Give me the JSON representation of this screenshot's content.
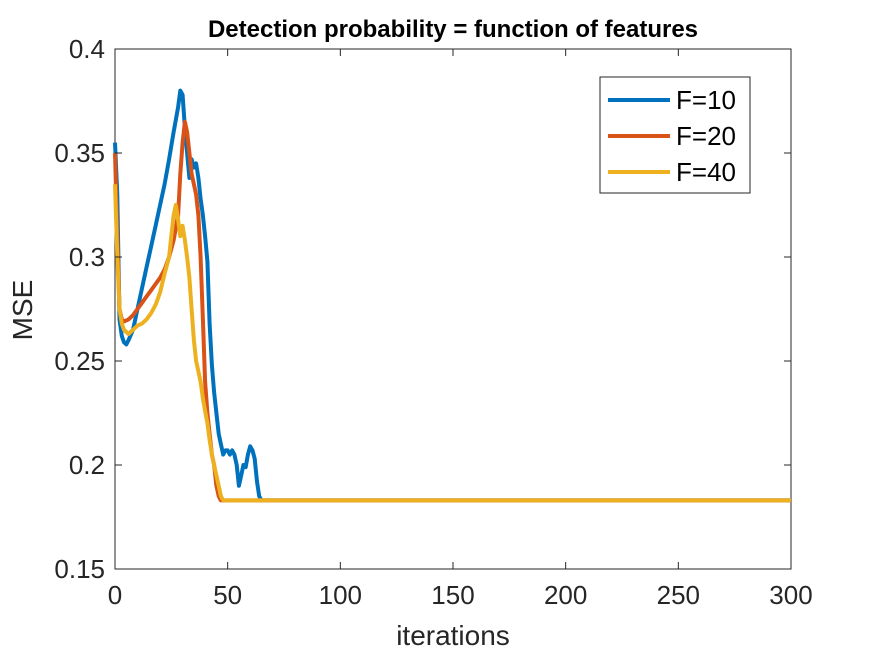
{
  "chart_data": {
    "type": "line",
    "title": "Detection probability = function of features",
    "xlabel": "iterations",
    "ylabel": "MSE",
    "xlim": [
      0,
      300
    ],
    "ylim": [
      0.15,
      0.4
    ],
    "xticks": [
      0,
      50,
      100,
      150,
      200,
      250,
      300
    ],
    "yticks": [
      0.15,
      0.2,
      0.25,
      0.3,
      0.35,
      0.4
    ],
    "xtick_labels": [
      "0",
      "50",
      "100",
      "150",
      "200",
      "250",
      "300"
    ],
    "ytick_labels": [
      "0.15",
      "0.2",
      "0.25",
      "0.3",
      "0.35",
      "0.4"
    ],
    "grid": false,
    "legend_position": "top-right",
    "series": [
      {
        "name": "F=10",
        "color": "#0072BD",
        "x": [
          0,
          1,
          2,
          3,
          4,
          5,
          6,
          8,
          10,
          12,
          14,
          16,
          18,
          20,
          22,
          24,
          26,
          28,
          29,
          30,
          31,
          32,
          33,
          34,
          35,
          36,
          37,
          38,
          39,
          40,
          41,
          42,
          43,
          44,
          45,
          46,
          47,
          48,
          49,
          50,
          51,
          52,
          53,
          54,
          55,
          56,
          57,
          58,
          59,
          60,
          61,
          62,
          63,
          64,
          65,
          300
        ],
        "y": [
          0.355,
          0.33,
          0.27,
          0.262,
          0.259,
          0.258,
          0.26,
          0.265,
          0.275,
          0.285,
          0.295,
          0.305,
          0.315,
          0.325,
          0.335,
          0.347,
          0.36,
          0.372,
          0.38,
          0.378,
          0.362,
          0.35,
          0.338,
          0.347,
          0.343,
          0.345,
          0.338,
          0.328,
          0.32,
          0.31,
          0.298,
          0.268,
          0.248,
          0.235,
          0.225,
          0.215,
          0.21,
          0.205,
          0.207,
          0.207,
          0.205,
          0.207,
          0.205,
          0.2,
          0.19,
          0.195,
          0.2,
          0.199,
          0.205,
          0.209,
          0.207,
          0.203,
          0.192,
          0.185,
          0.183,
          0.183
        ]
      },
      {
        "name": "F=20",
        "color": "#D95319",
        "x": [
          0,
          1,
          2,
          3,
          4,
          6,
          8,
          10,
          12,
          14,
          16,
          18,
          20,
          22,
          24,
          26,
          28,
          29,
          30,
          31,
          32,
          33,
          34,
          35,
          36,
          37,
          38,
          39,
          40,
          41,
          42,
          43,
          44,
          45,
          46,
          47,
          48,
          300
        ],
        "y": [
          0.35,
          0.31,
          0.275,
          0.27,
          0.269,
          0.27,
          0.272,
          0.275,
          0.278,
          0.281,
          0.284,
          0.287,
          0.29,
          0.294,
          0.3,
          0.308,
          0.32,
          0.34,
          0.355,
          0.365,
          0.36,
          0.35,
          0.34,
          0.335,
          0.33,
          0.32,
          0.3,
          0.27,
          0.24,
          0.225,
          0.215,
          0.205,
          0.2,
          0.19,
          0.185,
          0.183,
          0.183,
          0.183
        ]
      },
      {
        "name": "F=40",
        "color": "#EDB120",
        "x": [
          0,
          1,
          2,
          3,
          4,
          6,
          8,
          10,
          12,
          14,
          16,
          18,
          20,
          22,
          24,
          25,
          26,
          27,
          28,
          29,
          30,
          31,
          32,
          33,
          34,
          35,
          36,
          37,
          38,
          39,
          40,
          41,
          42,
          43,
          44,
          45,
          46,
          47,
          48,
          49,
          50,
          300
        ],
        "y": [
          0.335,
          0.3,
          0.275,
          0.268,
          0.265,
          0.263,
          0.265,
          0.267,
          0.268,
          0.27,
          0.273,
          0.277,
          0.283,
          0.292,
          0.3,
          0.31,
          0.32,
          0.325,
          0.318,
          0.31,
          0.315,
          0.308,
          0.3,
          0.29,
          0.275,
          0.26,
          0.25,
          0.245,
          0.24,
          0.232,
          0.226,
          0.22,
          0.212,
          0.205,
          0.2,
          0.195,
          0.19,
          0.185,
          0.183,
          0.183,
          0.183,
          0.183
        ]
      }
    ]
  }
}
